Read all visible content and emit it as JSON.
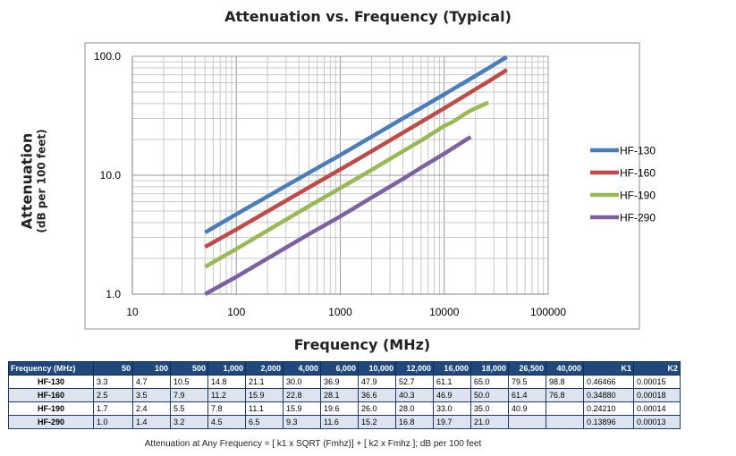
{
  "chart_data": {
    "type": "line",
    "title": "Attenuation vs. Frequency (Typical)",
    "xlabel": "Frequency (MHz)",
    "ylabel": "Attenuation",
    "ylabel_sub": "(dB per 100 feet)",
    "x_scale": "log",
    "y_scale": "log",
    "xlim": [
      10,
      100000
    ],
    "ylim": [
      1.0,
      100.0
    ],
    "x_ticks": [
      "10",
      "100",
      "1000",
      "10000",
      "100000"
    ],
    "y_ticks": [
      "1.0",
      "10.0",
      "100.0"
    ],
    "grid": true,
    "legend_position": "right",
    "x": [
      50,
      100,
      500,
      1000,
      2000,
      4000,
      6000,
      10000,
      12000,
      16000,
      18000,
      26500,
      40000
    ],
    "series": [
      {
        "name": "HF-130",
        "color": "#4a7ebb",
        "values": [
          3.3,
          4.7,
          10.5,
          14.8,
          21.1,
          30.0,
          36.9,
          47.9,
          52.7,
          61.1,
          65.0,
          79.5,
          98.8
        ]
      },
      {
        "name": "HF-160",
        "color": "#be4b48",
        "values": [
          2.5,
          3.5,
          7.9,
          11.2,
          15.9,
          22.8,
          28.1,
          36.6,
          40.3,
          46.9,
          50.0,
          61.4,
          76.8
        ]
      },
      {
        "name": "HF-190",
        "color": "#98b954",
        "values": [
          1.7,
          2.4,
          5.5,
          7.8,
          11.1,
          15.9,
          19.6,
          26.0,
          28.0,
          33.0,
          35.0,
          40.9,
          null
        ]
      },
      {
        "name": "HF-290",
        "color": "#7d60a0",
        "values": [
          1.0,
          1.4,
          3.2,
          4.5,
          6.5,
          9.3,
          11.6,
          15.2,
          16.8,
          19.7,
          21.0,
          null,
          null
        ]
      }
    ]
  },
  "table": {
    "header_label": "Frequency (MHz)",
    "columns": [
      "50",
      "100",
      "500",
      "1,000",
      "2,000",
      "4,000",
      "6,000",
      "10,000",
      "12,000",
      "16,000",
      "18,000",
      "26,500",
      "40,000",
      "K1",
      "K2"
    ],
    "rows": [
      {
        "name": "HF-130",
        "cells": [
          "3.3",
          "4.7",
          "10.5",
          "14.8",
          "21.1",
          "30.0",
          "36.9",
          "47.9",
          "52.7",
          "61.1",
          "65.0",
          "79.5",
          "98.8",
          "0.46466",
          "0.00015"
        ]
      },
      {
        "name": "HF-160",
        "cells": [
          "2.5",
          "3.5",
          "7.9",
          "11.2",
          "15.9",
          "22.8",
          "28.1",
          "36.6",
          "40.3",
          "46.9",
          "50.0",
          "61.4",
          "76.8",
          "0.34880",
          "0.00018"
        ]
      },
      {
        "name": "HF-190",
        "cells": [
          "1.7",
          "2.4",
          "5.5",
          "7.8",
          "11.1",
          "15.9",
          "19.6",
          "26.0",
          "28.0",
          "33.0",
          "35.0",
          "40.9",
          "",
          "0.24210",
          "0.00014"
        ]
      },
      {
        "name": "HF-290",
        "cells": [
          "1.0",
          "1.4",
          "3.2",
          "4.5",
          "6.5",
          "9.3",
          "11.6",
          "15.2",
          "16.8",
          "19.7",
          "21.0",
          "",
          "",
          "0.13896",
          "0.00013"
        ]
      }
    ]
  },
  "formula": "Attenuation at Any Frequency = [ k1 x SQRT (Fmhz)] + [ k2 x Fmhz ]; dB per 100 feet"
}
